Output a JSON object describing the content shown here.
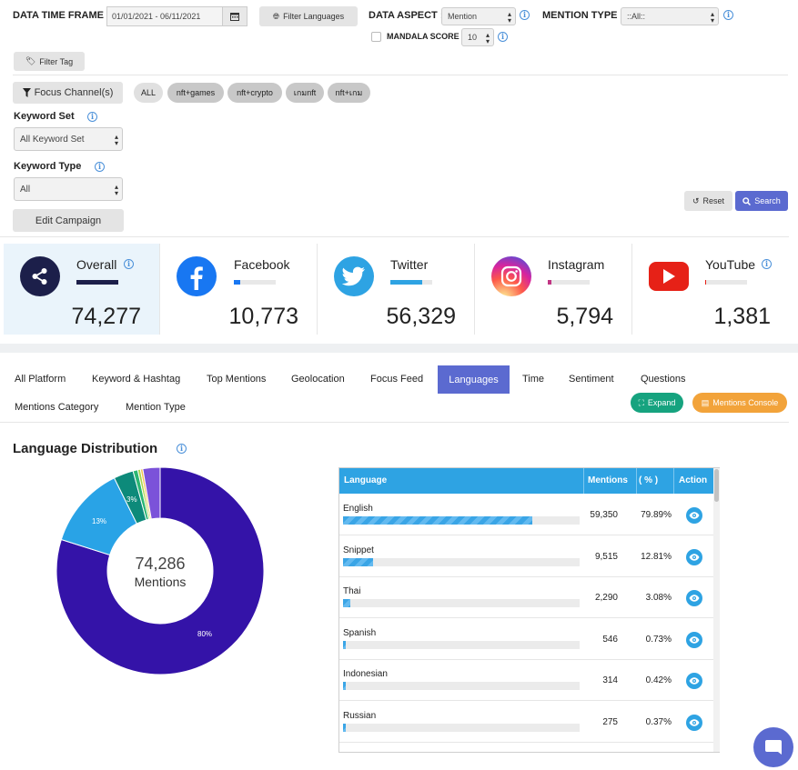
{
  "filters": {
    "data_time_frame_label": "DATA TIME FRAME :",
    "date_range": "01/01/2021 - 06/11/2021",
    "filter_languages": "Filter Languages",
    "data_aspect_label": "DATA ASPECT :",
    "data_aspect_value": "Mention",
    "mention_type_label": "MENTION TYPE :",
    "mention_type_value": "::All::",
    "mandala_score_label": "MANDALA SCORE :",
    "mandala_score_value": "10",
    "filter_tag": "Filter Tag",
    "focus_channels": "Focus Channel(s)",
    "chips": [
      "ALL",
      "nft+games",
      "nft+crypto",
      "เกมnft",
      "nft+เกม"
    ],
    "keyword_set_label": "Keyword Set",
    "keyword_set_value": "All Keyword Set",
    "keyword_type_label": "Keyword Type",
    "keyword_type_value": "All",
    "edit_campaign": "Edit Campaign",
    "reset": "Reset",
    "search": "Search"
  },
  "stats": [
    {
      "name": "Overall",
      "value": "74,277",
      "bar_fraction": 1.0,
      "color": "#1c1f4a"
    },
    {
      "name": "Facebook",
      "value": "10,773",
      "bar_fraction": 0.145,
      "color": "#1877f2"
    },
    {
      "name": "Twitter",
      "value": "56,329",
      "bar_fraction": 0.76,
      "color": "#2ea3e3"
    },
    {
      "name": "Instagram",
      "value": "5,794",
      "bar_fraction": 0.078,
      "color": "#c13584"
    },
    {
      "name": "YouTube",
      "value": "1,381",
      "bar_fraction": 0.019,
      "color": "#e62117"
    }
  ],
  "tabs": {
    "row1": [
      "All Platform",
      "Keyword & Hashtag",
      "Top Mentions",
      "Geolocation",
      "Focus Feed",
      "Languages",
      "Time",
      "Sentiment",
      "Questions"
    ],
    "row2": [
      "Mentions Category",
      "Mention Type"
    ],
    "active": "Languages",
    "expand": "Expand",
    "mentions_console": "Mentions Console"
  },
  "section_title": "Language Distribution",
  "donut": {
    "total": "74,286",
    "total_label": "Mentions",
    "labels": [
      "80%",
      "13%",
      "3%"
    ]
  },
  "table": {
    "headers": [
      "Language",
      "Mentions",
      "( % )",
      "Action"
    ]
  },
  "chart_data": {
    "type": "pie",
    "categories": [
      "English",
      "Snippet",
      "Thai",
      "Spanish",
      "Indonesian",
      "Russian"
    ],
    "values": [
      59350,
      9515,
      2290,
      546,
      314,
      275
    ],
    "percentages": [
      "79.89%",
      "12.81%",
      "3.08%",
      "0.73%",
      "0.42%",
      "0.37%"
    ],
    "mentions_display": [
      "59,350",
      "9,515",
      "2,290",
      "546",
      "314",
      "275"
    ],
    "total": 74286
  }
}
